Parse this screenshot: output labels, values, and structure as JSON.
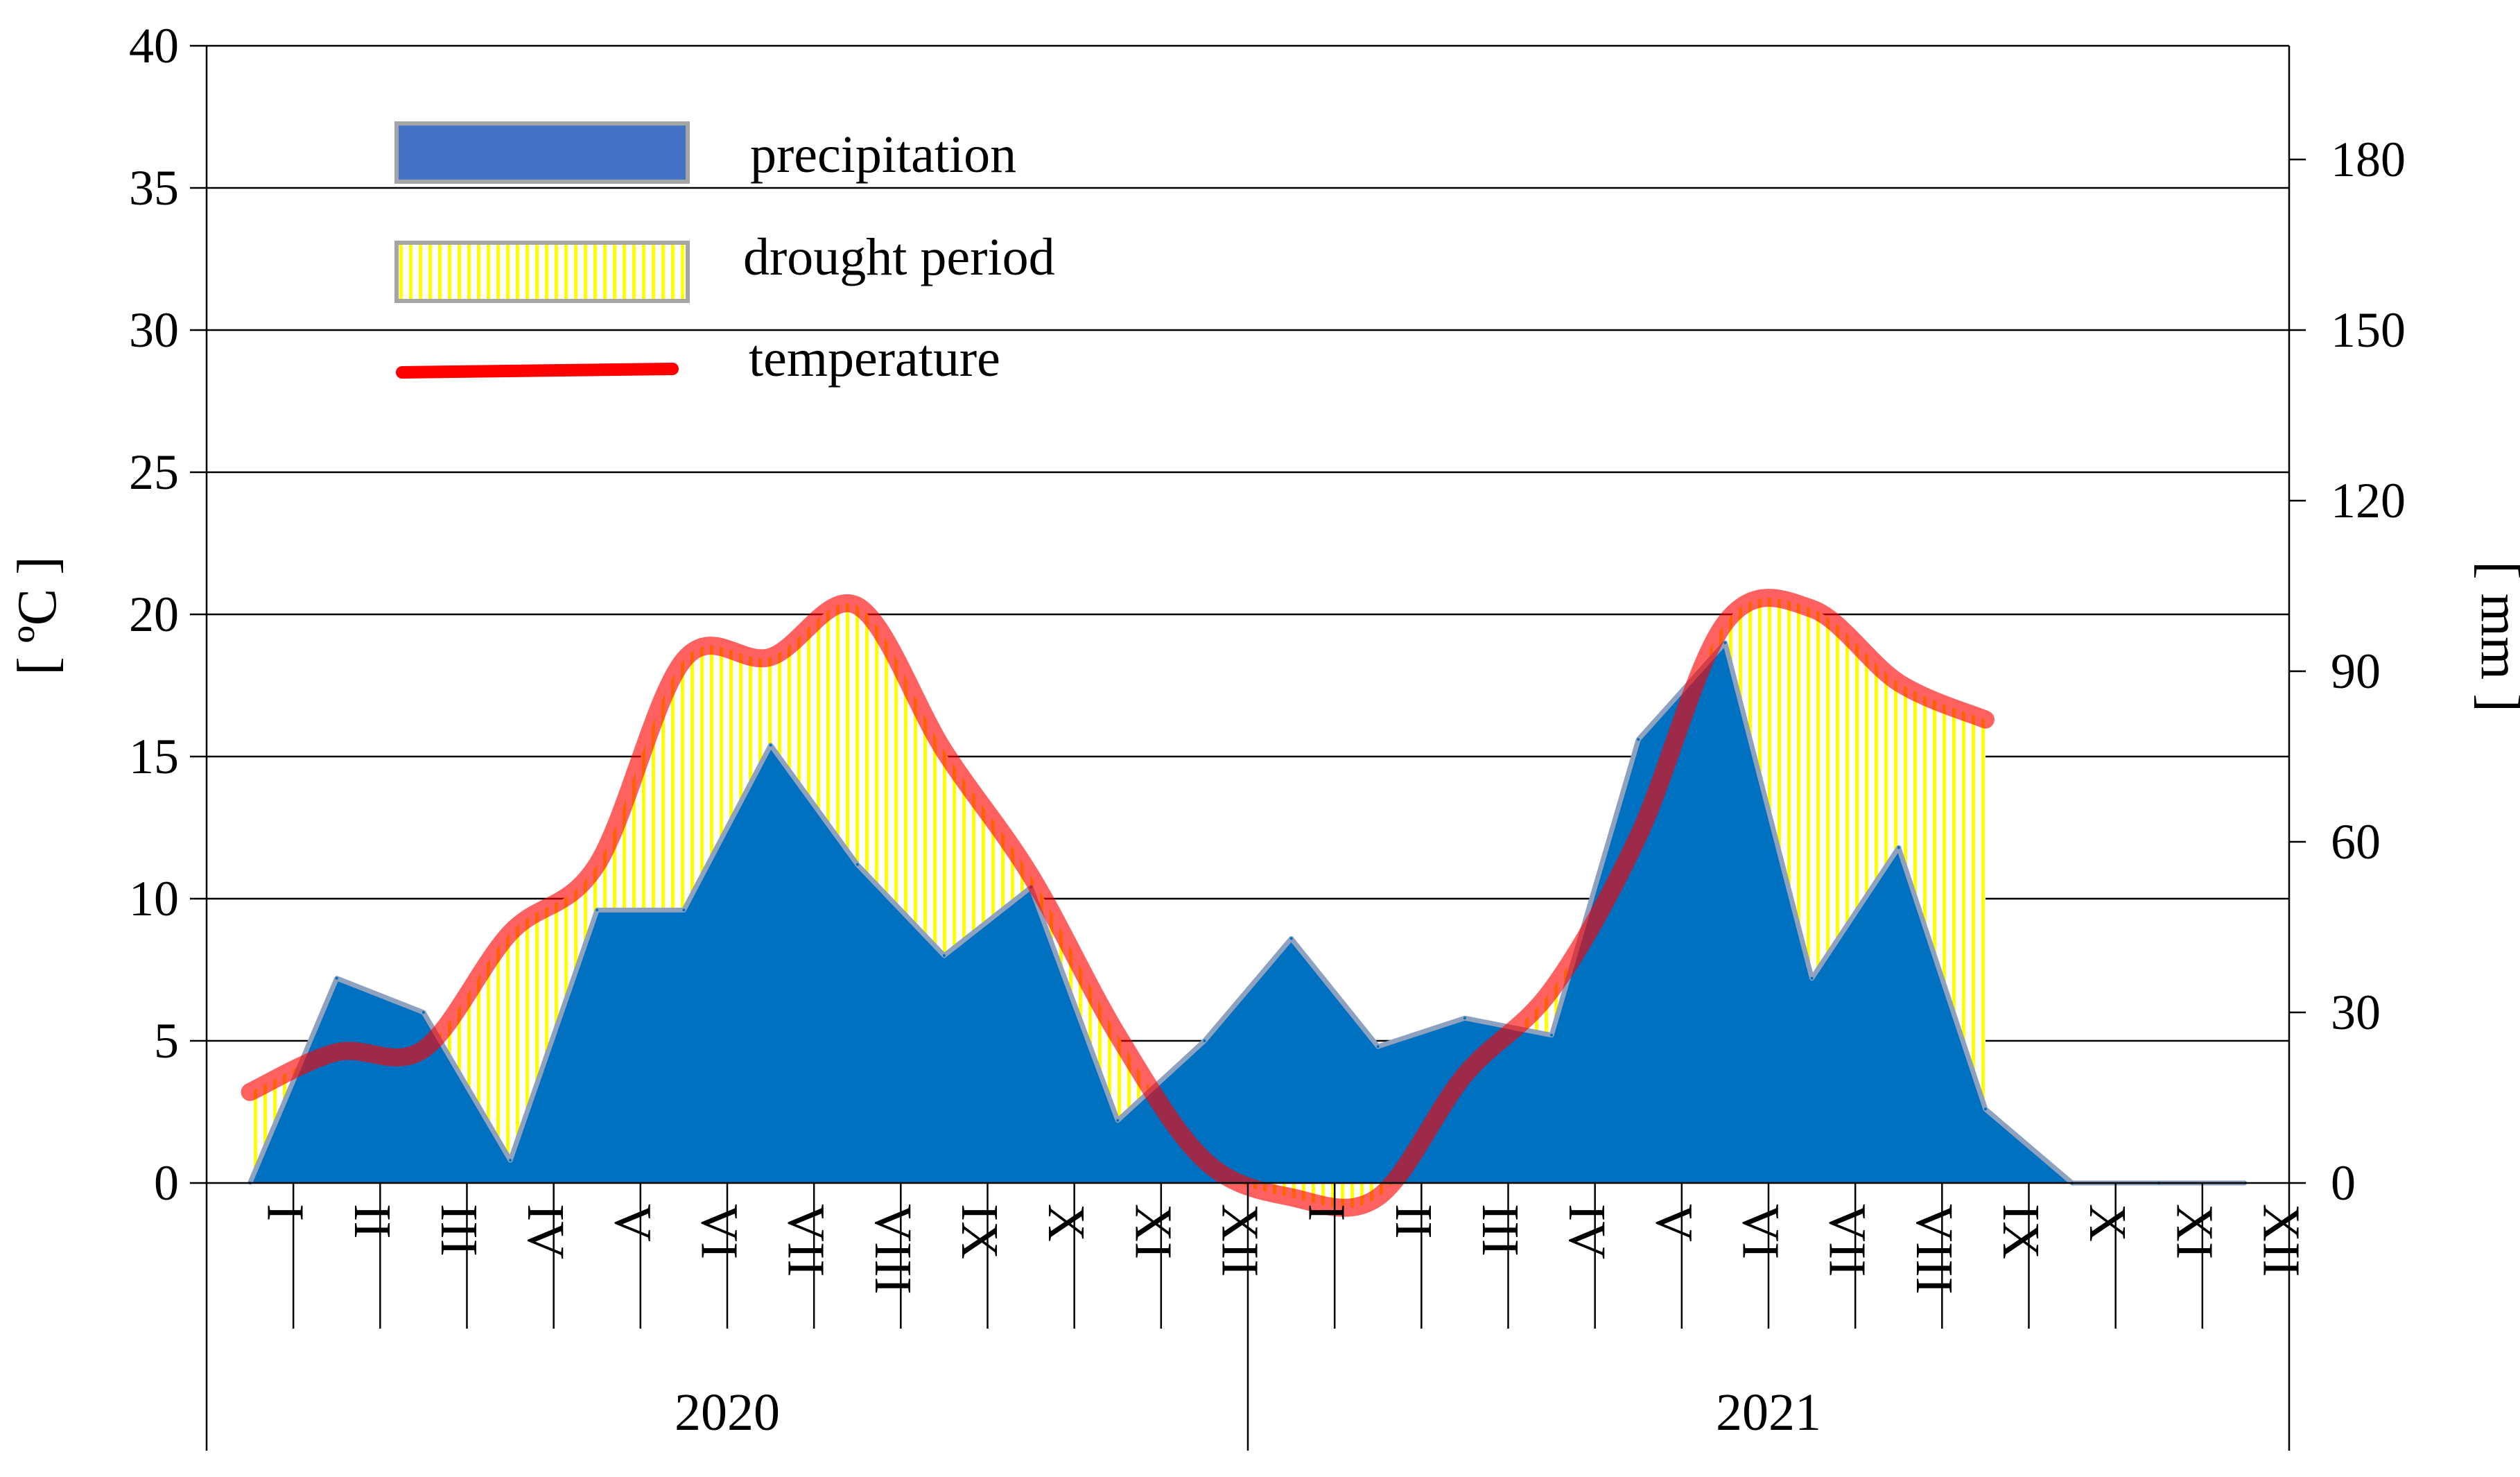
{
  "chart_data": {
    "type": "area",
    "categories": [
      "I",
      "II",
      "III",
      "IV",
      "V",
      "VI",
      "VII",
      "VIII",
      "IX",
      "X",
      "XI",
      "XII",
      "I",
      "II",
      "III",
      "IV",
      "V",
      "VI",
      "VII",
      "VIII",
      "IX",
      "X",
      "XI",
      "XII"
    ],
    "groups": [
      {
        "label": "2020",
        "start": 0,
        "end": 11
      },
      {
        "label": "2021",
        "start": 12,
        "end": 23
      }
    ],
    "left_axis": {
      "label": "[ ºC ]",
      "ylim": [
        0,
        40
      ],
      "ticks": [
        "0",
        "5",
        "10",
        "15",
        "20",
        "25",
        "30",
        "35",
        "40"
      ]
    },
    "right_axis": {
      "label": "[ mm ]",
      "ylim": [
        0,
        200
      ],
      "ticks": [
        "0",
        "30",
        "60",
        "90",
        "120",
        "150",
        "180"
      ]
    },
    "grid": true,
    "legend": {
      "placement": "top-left",
      "items": [
        {
          "name": "precipitation",
          "color": "#4472c4"
        },
        {
          "name": "drought period",
          "color": "#ffff00"
        },
        {
          "name": "temperature",
          "color": "#ff0000"
        }
      ]
    },
    "series": [
      {
        "name": "precipitation",
        "axis": "right",
        "unit": "mm",
        "color": "#0070c0",
        "values": [
          0,
          36,
          30,
          4,
          48,
          48,
          77,
          56,
          40,
          52,
          11,
          25,
          43,
          24,
          29,
          26,
          78,
          95,
          36,
          59,
          13,
          0,
          0,
          0
        ]
      },
      {
        "name": "temperature",
        "axis": "left",
        "unit": "°C",
        "color": "#ff0000",
        "values": [
          3.2,
          4.6,
          4.7,
          8.8,
          11.2,
          18.4,
          18.5,
          20.3,
          15.2,
          10.8,
          5.2,
          0.8,
          -0.5,
          -0.5,
          3.8,
          6.8,
          12.2,
          19.7,
          20.2,
          17.6,
          16.3,
          null,
          null,
          null
        ]
      }
    ]
  }
}
